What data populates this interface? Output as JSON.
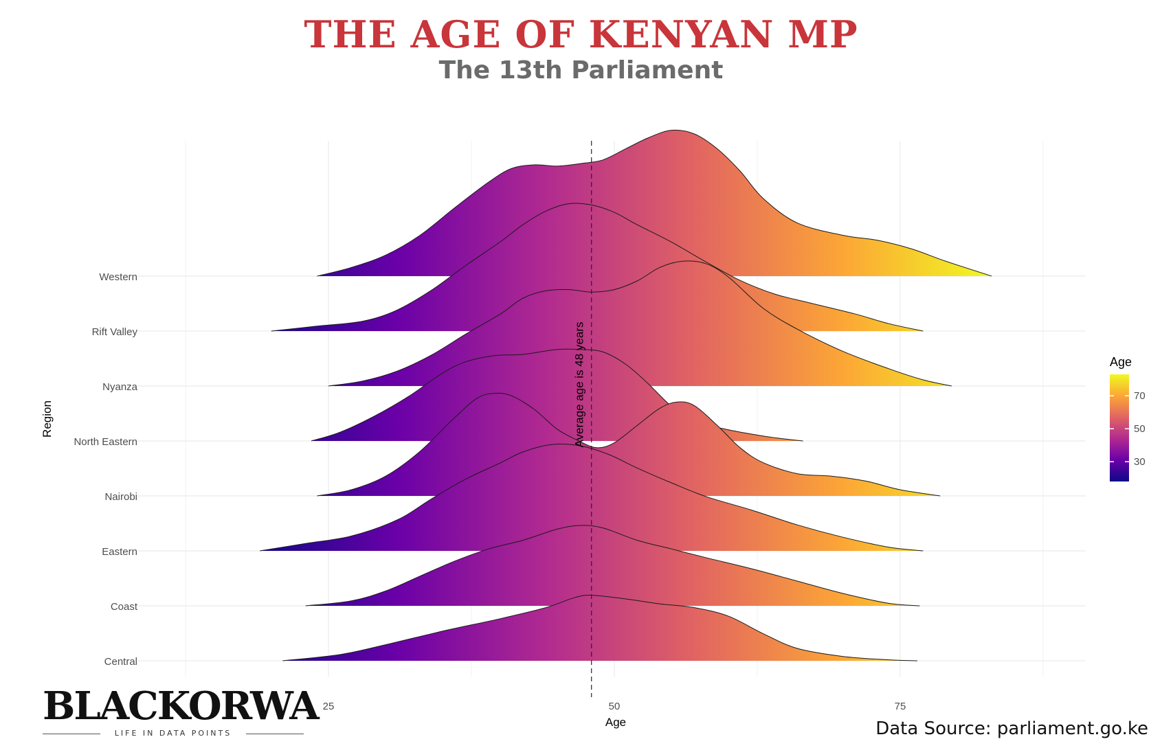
{
  "header": {
    "title": "THE AGE OF KENYAN MP",
    "subtitle": "The 13th Parliament"
  },
  "brand": {
    "name": "BLACKORWA",
    "tagline": "LIFE IN DATA POINTS"
  },
  "footer": {
    "source": "Data Source: parliament.go.ke"
  },
  "chart_data": {
    "type": "ridgeline",
    "xlabel": "Age",
    "ylabel": "Region",
    "xlim": [
      12.5,
      92
    ],
    "x_ticks": [
      25,
      50,
      75
    ],
    "x_tick_labels": [
      "25",
      "50",
      "75"
    ],
    "grid": true,
    "legend": {
      "title": "Age",
      "placement": "right",
      "ticks": [
        30,
        50,
        70
      ],
      "tick_labels": [
        "30",
        "50",
        "70"
      ],
      "range": [
        18,
        83
      ],
      "colors": [
        "#0d0887",
        "#6a00a8",
        "#b12a90",
        "#e16462",
        "#fca636",
        "#f0f921"
      ]
    },
    "reference_line": {
      "x": 48,
      "label": "Average age is 48 years"
    },
    "series": [
      {
        "name": "Central",
        "points": [
          [
            21,
            0
          ],
          [
            26,
            0.5
          ],
          [
            30,
            1.3
          ],
          [
            35,
            2.4
          ],
          [
            40,
            3.4
          ],
          [
            44,
            4.3
          ],
          [
            46.5,
            5.1
          ],
          [
            48,
            5.3
          ],
          [
            51,
            5.0
          ],
          [
            54,
            4.6
          ],
          [
            57,
            4.3
          ],
          [
            60,
            3.6
          ],
          [
            63,
            2.2
          ],
          [
            66,
            1.0
          ],
          [
            70,
            0.35
          ],
          [
            74,
            0.08
          ],
          [
            76.5,
            0
          ]
        ]
      },
      {
        "name": "Coast",
        "points": [
          [
            23,
            0
          ],
          [
            27,
            0.4
          ],
          [
            30,
            1.2
          ],
          [
            33,
            2.4
          ],
          [
            36,
            3.6
          ],
          [
            39,
            4.6
          ],
          [
            42,
            5.3
          ],
          [
            45,
            6.2
          ],
          [
            47,
            6.5
          ],
          [
            49,
            6.3
          ],
          [
            52,
            5.3
          ],
          [
            55,
            4.6
          ],
          [
            58,
            3.9
          ],
          [
            62,
            3.0
          ],
          [
            66,
            2.0
          ],
          [
            70,
            1.0
          ],
          [
            74,
            0.2
          ],
          [
            76.7,
            0
          ]
        ]
      },
      {
        "name": "Eastern",
        "points": [
          [
            19,
            0
          ],
          [
            23,
            0.6
          ],
          [
            27,
            1.2
          ],
          [
            31,
            2.5
          ],
          [
            34,
            4.2
          ],
          [
            37,
            5.8
          ],
          [
            40,
            7.1
          ],
          [
            42,
            8.0
          ],
          [
            44.5,
            8.6
          ],
          [
            47,
            8.5
          ],
          [
            49.5,
            7.8
          ],
          [
            52,
            6.7
          ],
          [
            55,
            5.5
          ],
          [
            58,
            4.4
          ],
          [
            62,
            3.3
          ],
          [
            66,
            2.1
          ],
          [
            70,
            1.1
          ],
          [
            74,
            0.3
          ],
          [
            77,
            0
          ]
        ]
      },
      {
        "name": "Nairobi",
        "points": [
          [
            24,
            0
          ],
          [
            27,
            0.5
          ],
          [
            30,
            1.6
          ],
          [
            33,
            3.6
          ],
          [
            36,
            6.3
          ],
          [
            38,
            7.9
          ],
          [
            39.5,
            8.3
          ],
          [
            41,
            8.1
          ],
          [
            43,
            7.0
          ],
          [
            45,
            5.4
          ],
          [
            47,
            4.4
          ],
          [
            48.5,
            3.9
          ],
          [
            50,
            4.3
          ],
          [
            52,
            5.7
          ],
          [
            54,
            7.1
          ],
          [
            55.5,
            7.6
          ],
          [
            57,
            7.3
          ],
          [
            59,
            5.7
          ],
          [
            61,
            3.9
          ],
          [
            63,
            2.7
          ],
          [
            66,
            1.8
          ],
          [
            69,
            1.6
          ],
          [
            72,
            1.2
          ],
          [
            75,
            0.5
          ],
          [
            78.5,
            0
          ]
        ]
      },
      {
        "name": "North Eastern",
        "points": [
          [
            23.5,
            0
          ],
          [
            26,
            0.7
          ],
          [
            29,
            2.0
          ],
          [
            32,
            3.6
          ],
          [
            35,
            5.5
          ],
          [
            37,
            6.4
          ],
          [
            39.5,
            6.9
          ],
          [
            42,
            7.0
          ],
          [
            45,
            7.4
          ],
          [
            47,
            7.4
          ],
          [
            49,
            7.2
          ],
          [
            51,
            6.2
          ],
          [
            53,
            4.6
          ],
          [
            55,
            2.8
          ],
          [
            57,
            1.6
          ],
          [
            60,
            0.9
          ],
          [
            63,
            0.4
          ],
          [
            65,
            0.15
          ],
          [
            66.5,
            0
          ]
        ]
      },
      {
        "name": "Nyanza",
        "points": [
          [
            25,
            0
          ],
          [
            28,
            0.4
          ],
          [
            31,
            1.2
          ],
          [
            34,
            2.5
          ],
          [
            37,
            4.2
          ],
          [
            40,
            5.8
          ],
          [
            42,
            7.1
          ],
          [
            44,
            7.7
          ],
          [
            46,
            7.8
          ],
          [
            48,
            7.6
          ],
          [
            50,
            7.8
          ],
          [
            52,
            8.5
          ],
          [
            54,
            9.6
          ],
          [
            56,
            10.1
          ],
          [
            58,
            9.9
          ],
          [
            60,
            8.8
          ],
          [
            63,
            6.3
          ],
          [
            66,
            4.6
          ],
          [
            70,
            2.8
          ],
          [
            74,
            1.4
          ],
          [
            77,
            0.5
          ],
          [
            79.5,
            0
          ]
        ]
      },
      {
        "name": "Rift Valley",
        "points": [
          [
            20,
            0
          ],
          [
            24,
            0.4
          ],
          [
            28,
            0.8
          ],
          [
            31,
            1.7
          ],
          [
            34,
            3.3
          ],
          [
            37,
            5.3
          ],
          [
            40,
            7.2
          ],
          [
            42,
            8.6
          ],
          [
            44,
            9.7
          ],
          [
            46,
            10.3
          ],
          [
            48,
            10.2
          ],
          [
            50,
            9.6
          ],
          [
            52,
            8.6
          ],
          [
            55,
            7.2
          ],
          [
            58,
            5.6
          ],
          [
            61,
            4.1
          ],
          [
            64,
            3.0
          ],
          [
            67,
            2.3
          ],
          [
            71,
            1.4
          ],
          [
            74,
            0.6
          ],
          [
            77,
            0
          ]
        ]
      },
      {
        "name": "Western",
        "points": [
          [
            24,
            0
          ],
          [
            27,
            0.7
          ],
          [
            30,
            1.7
          ],
          [
            33,
            3.3
          ],
          [
            36,
            5.5
          ],
          [
            39,
            7.6
          ],
          [
            41,
            8.7
          ],
          [
            43,
            9.0
          ],
          [
            45,
            8.9
          ],
          [
            47,
            9.1
          ],
          [
            49,
            9.4
          ],
          [
            51,
            10.3
          ],
          [
            53,
            11.2
          ],
          [
            55,
            11.8
          ],
          [
            57,
            11.5
          ],
          [
            59,
            10.3
          ],
          [
            61,
            8.5
          ],
          [
            63,
            6.3
          ],
          [
            66,
            4.3
          ],
          [
            70,
            3.3
          ],
          [
            73,
            2.9
          ],
          [
            76,
            2.2
          ],
          [
            79,
            1.2
          ],
          [
            83,
            0
          ]
        ]
      }
    ]
  }
}
